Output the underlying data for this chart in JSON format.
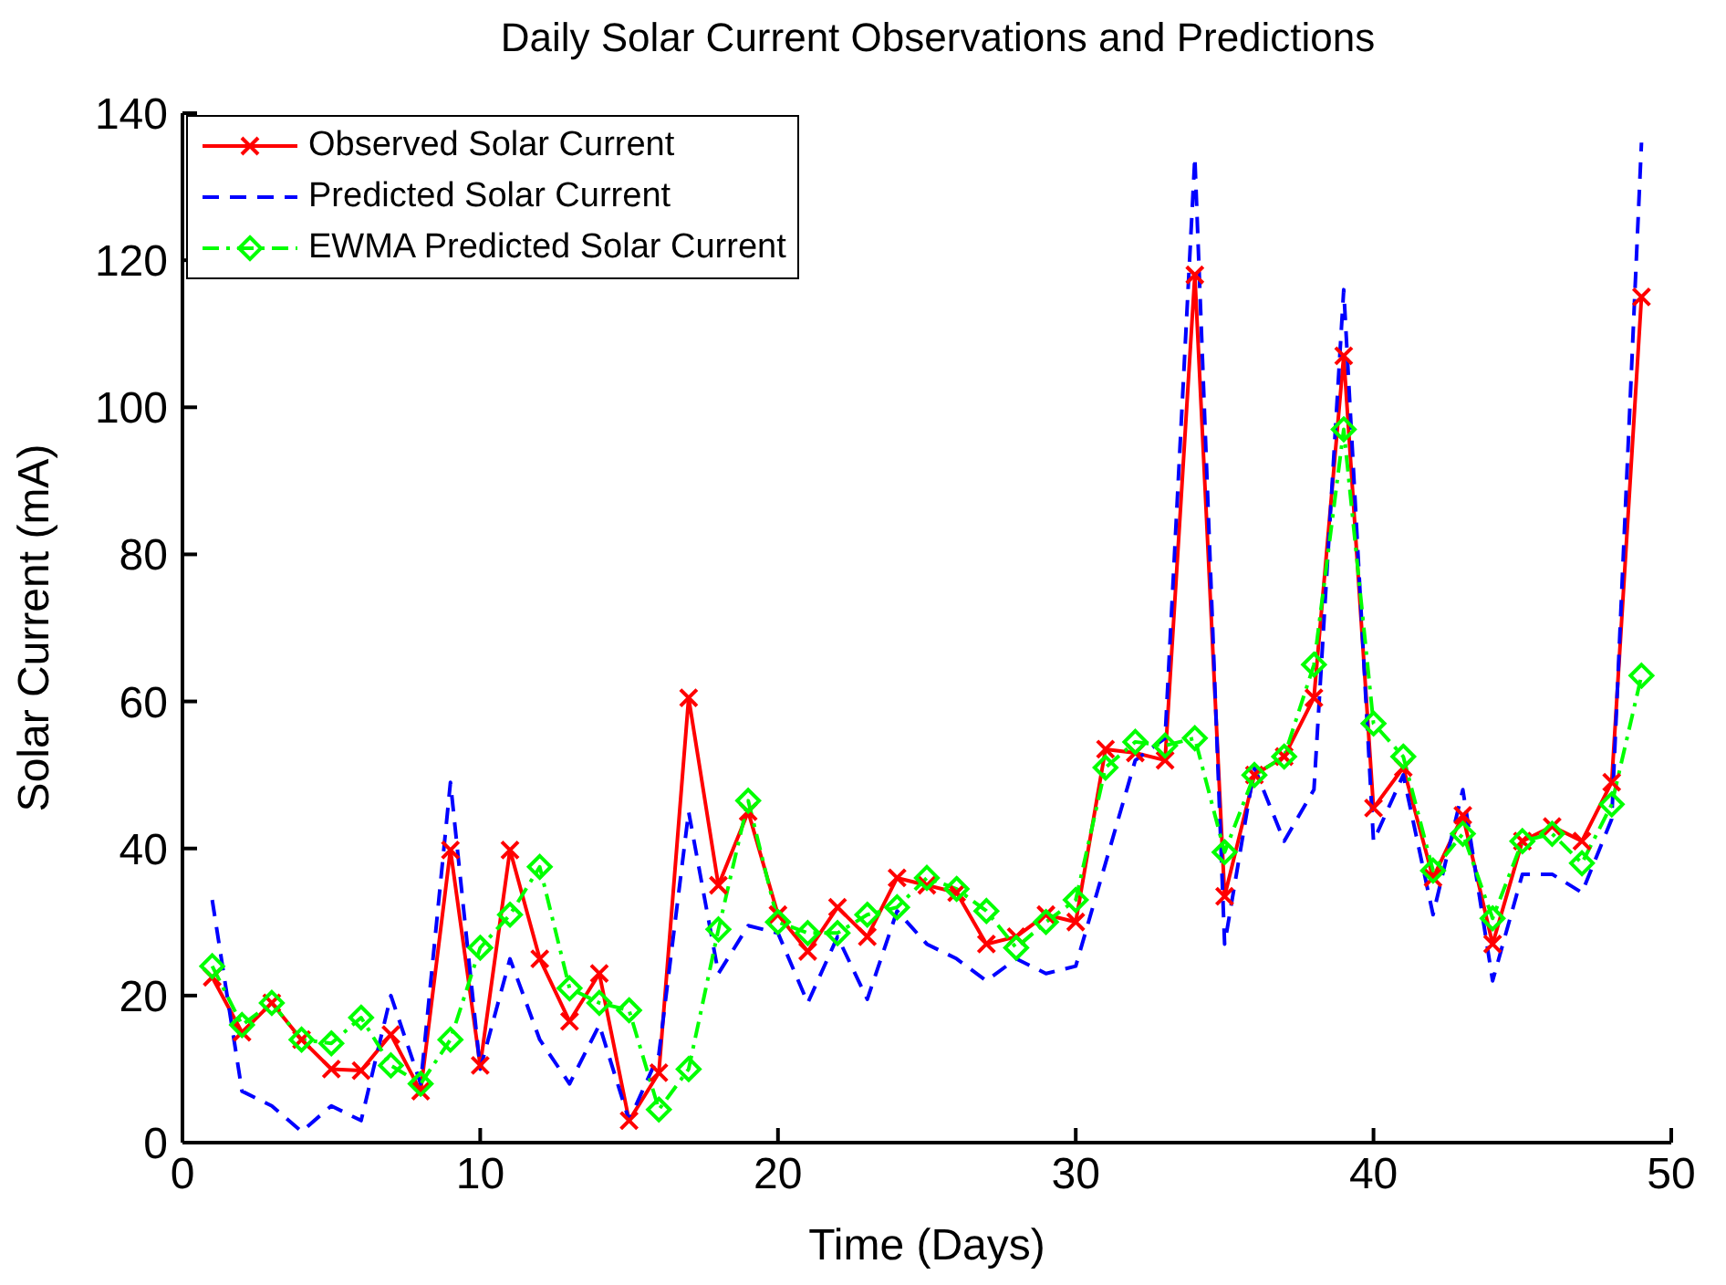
{
  "chart_data": {
    "type": "line",
    "title": "Daily Solar Current Observations and Predictions",
    "xlabel": "Time (Days)",
    "ylabel": "Solar Current (mA)",
    "x": [
      1,
      2,
      3,
      4,
      5,
      6,
      7,
      8,
      9,
      10,
      11,
      12,
      13,
      14,
      15,
      16,
      17,
      18,
      19,
      20,
      21,
      22,
      23,
      24,
      25,
      26,
      27,
      28,
      29,
      30,
      31,
      32,
      33,
      34,
      35,
      36,
      37,
      38,
      39,
      40,
      41,
      42,
      43,
      44,
      45,
      46,
      47,
      48,
      49
    ],
    "series": [
      {
        "name": "Observed Solar Current",
        "color": "#ff0000",
        "marker": "cross",
        "line_style": "solid",
        "values": [
          22.5,
          15,
          19,
          14,
          10,
          9.8,
          14.7,
          7,
          39.8,
          10.5,
          39.8,
          25,
          16.5,
          23,
          3,
          9.5,
          60.5,
          35,
          45,
          31,
          26,
          32,
          28,
          36,
          35,
          34,
          27,
          28,
          31,
          30,
          53.5,
          53,
          52,
          118,
          33.5,
          50,
          52.5,
          60.5,
          107,
          45.5,
          51,
          36,
          44.5,
          27,
          41,
          43,
          41,
          49,
          115
        ]
      },
      {
        "name": "Predicted Solar Current",
        "color": "#0000ff",
        "marker": "none",
        "line_style": "dashed",
        "values": [
          33,
          7,
          5,
          1.5,
          5,
          3,
          20,
          8,
          49,
          10,
          25,
          14,
          8,
          16,
          3,
          12,
          45,
          23,
          29.5,
          28.5,
          19,
          28,
          19.5,
          31.5,
          27,
          25,
          22,
          25,
          23,
          24,
          38,
          52,
          55,
          134,
          27,
          51,
          41,
          48,
          116,
          41,
          50,
          31,
          48,
          22,
          36.5,
          36.5,
          34,
          44,
          136
        ]
      },
      {
        "name": "EWMA Predicted Solar Current",
        "color": "#00ff00",
        "marker": "diamond",
        "line_style": "dashdot",
        "values": [
          24,
          16,
          19,
          14,
          13.5,
          17,
          10.5,
          8,
          14,
          26.5,
          31,
          37.5,
          21,
          19,
          18,
          4.5,
          10,
          29,
          46.5,
          30,
          28.5,
          28.5,
          31,
          32,
          36,
          34.5,
          31.5,
          26.5,
          30,
          33,
          51,
          54.5,
          54,
          55,
          39.5,
          50,
          52.5,
          65,
          97,
          57,
          52.5,
          37,
          42,
          30.5,
          41,
          42,
          38,
          46,
          63.5
        ]
      }
    ],
    "xlim": [
      0,
      50
    ],
    "xticks": [
      0,
      10,
      20,
      30,
      40,
      50
    ],
    "ylim": [
      0,
      140
    ],
    "yticks": [
      0,
      20,
      40,
      60,
      80,
      100,
      120,
      140
    ],
    "grid": false,
    "legend": "top left"
  }
}
